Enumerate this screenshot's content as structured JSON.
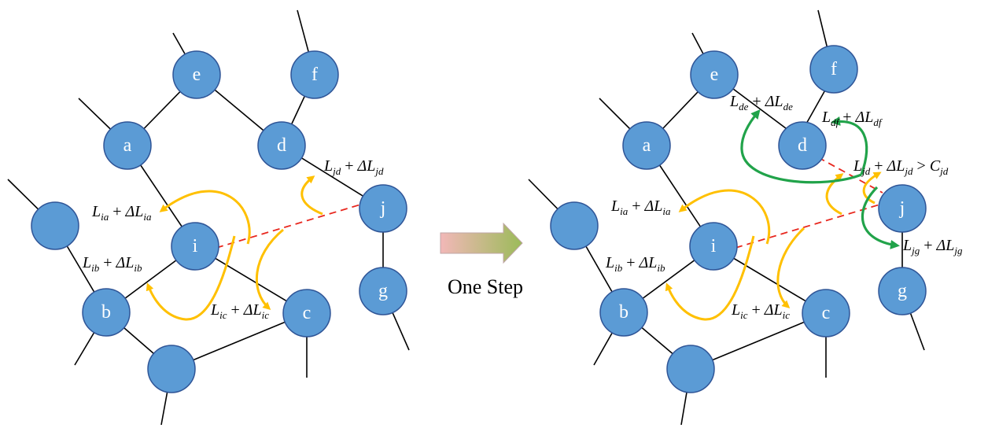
{
  "nodes": {
    "a": "a",
    "b": "b",
    "c": "c",
    "d": "d",
    "e": "e",
    "f": "f",
    "g": "g",
    "i": "i",
    "j": "j",
    "unlabeled": ""
  },
  "step_label": "One Step",
  "formula": {
    "L": "L",
    "plus": "+",
    "delta": "ΔL",
    "gt": ">",
    "C": "C"
  },
  "subscripts": {
    "ia": "ia",
    "ib": "ib",
    "ic": "ic",
    "jd": "jd",
    "de": "de",
    "df": "df",
    "jg": "jg"
  },
  "colors": {
    "node_fill": "#5b9bd5",
    "node_stroke": "#2f5597",
    "traffic_arrow": "#ffc000",
    "overload_arrow": "#21a34a",
    "link_path": "#e8271e"
  }
}
